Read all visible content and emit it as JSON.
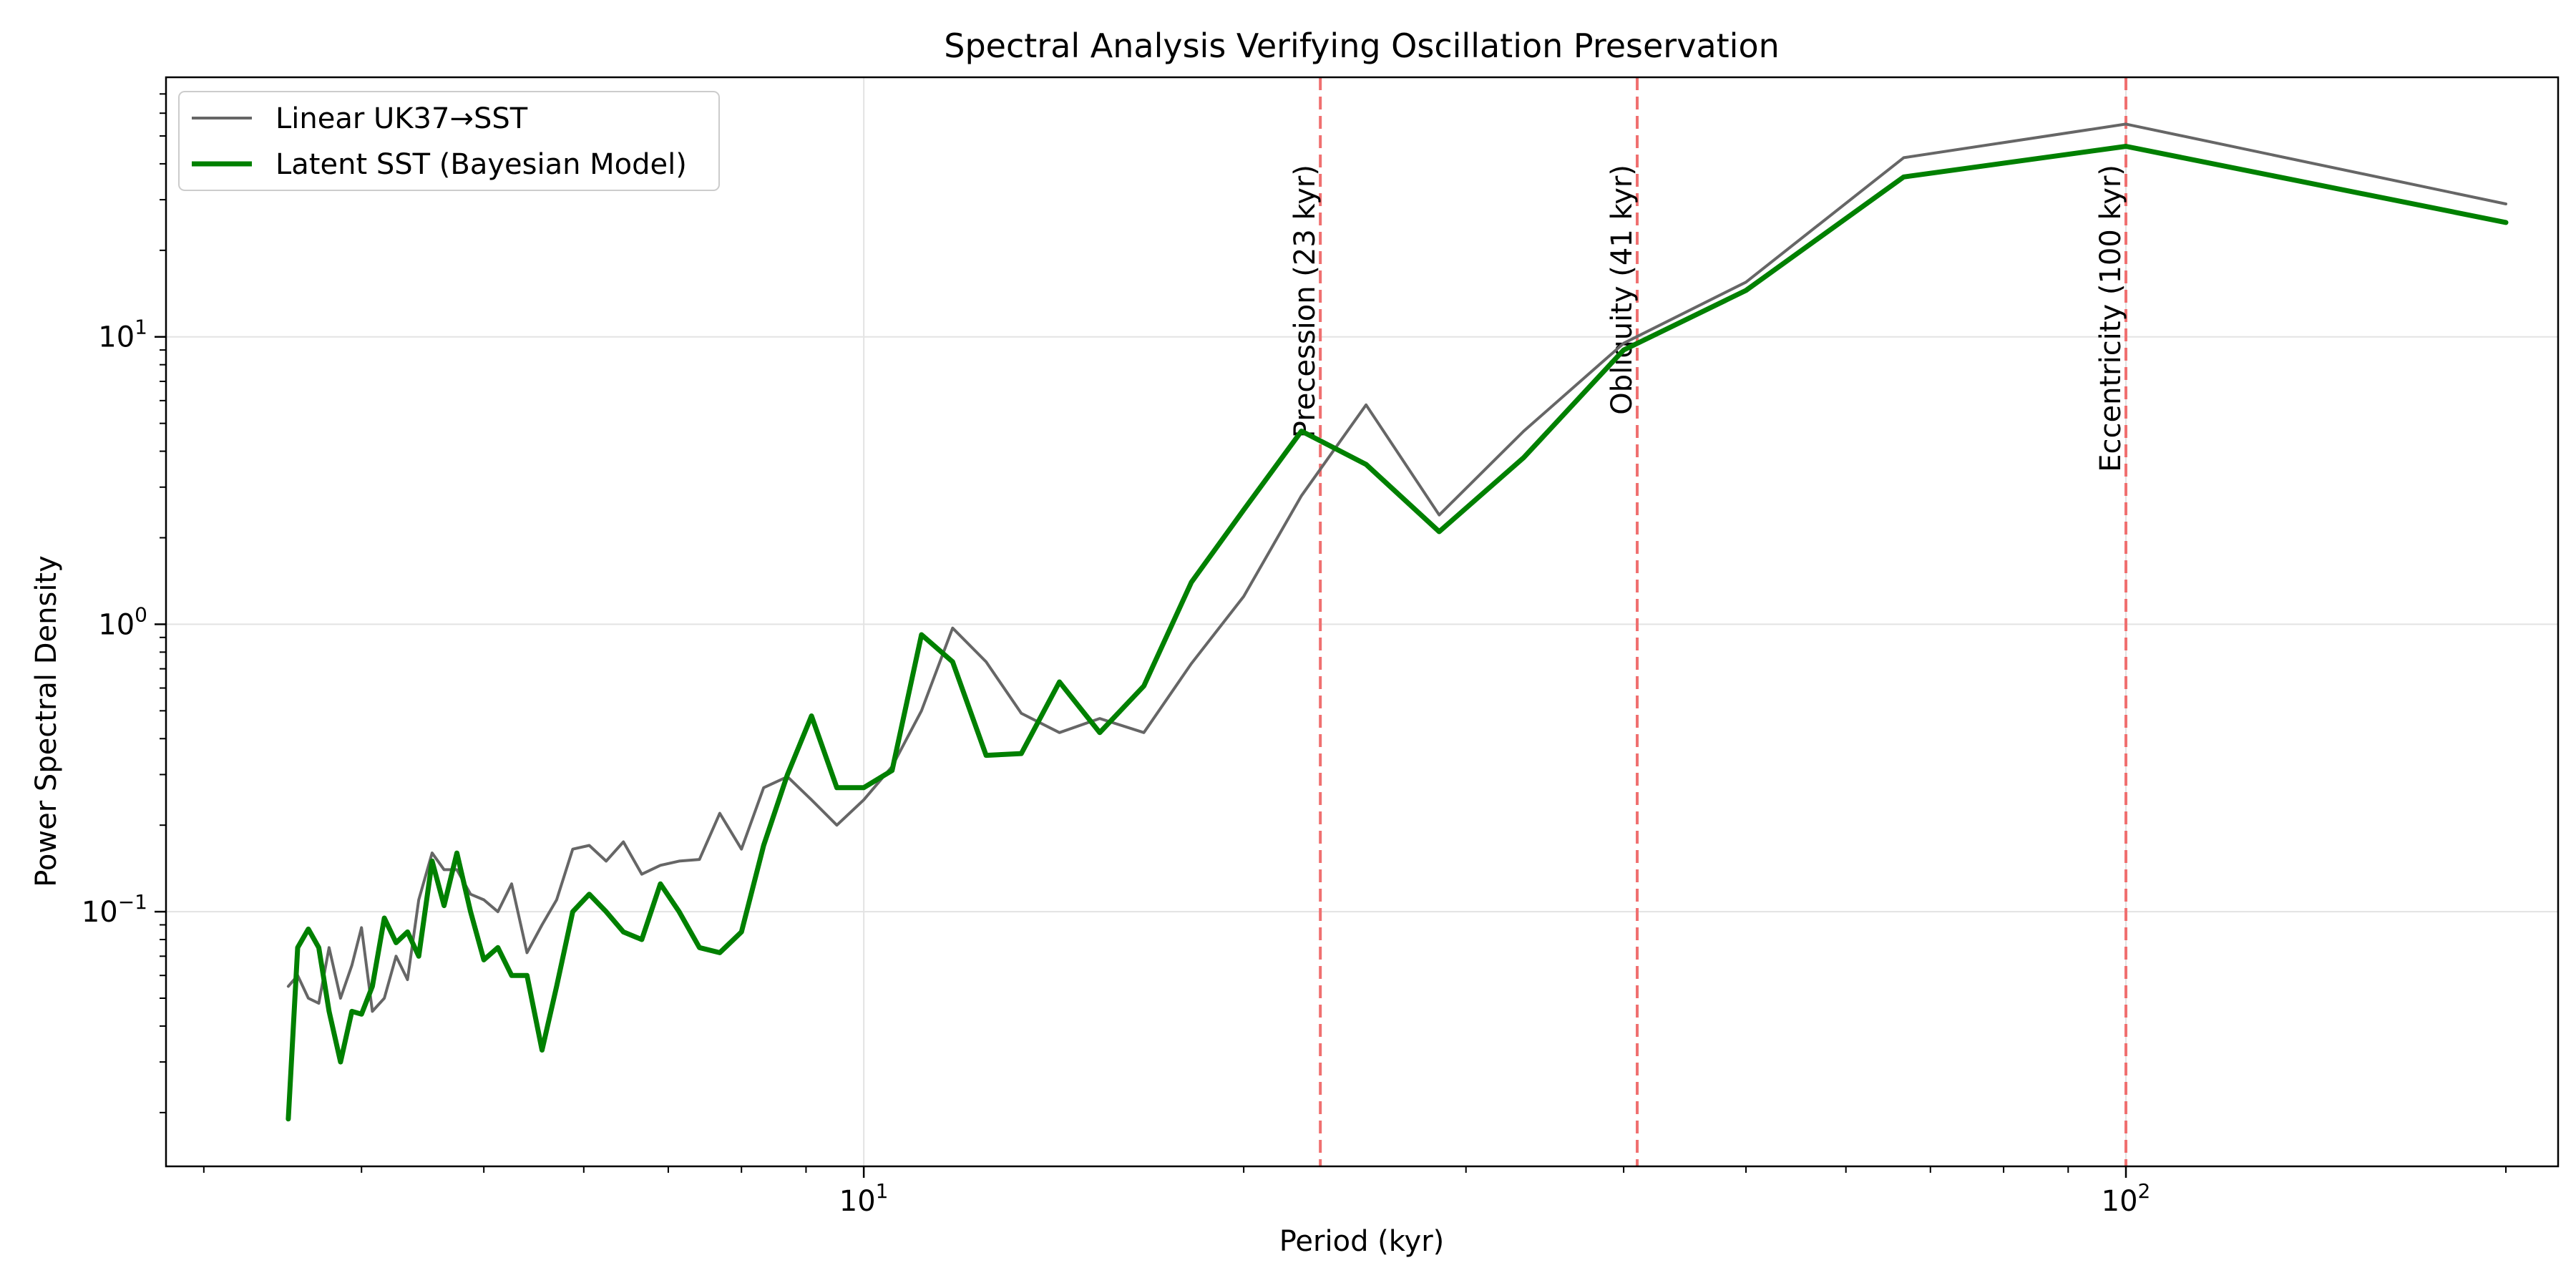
{
  "chart_data": {
    "type": "line",
    "title": "Spectral Analysis Verifying Oscillation Preservation",
    "xlabel": "Period (kyr)",
    "ylabel": "Power Spectral Density",
    "xscale": "log",
    "yscale": "log",
    "xlim": [
      2.8,
      220
    ],
    "ylim": [
      0.013,
      80
    ],
    "grid": true,
    "legend_position": "upper-left",
    "xticks": [
      {
        "value": 10,
        "base": "10",
        "exp": "1"
      },
      {
        "value": 100,
        "base": "10",
        "exp": "2"
      }
    ],
    "yticks": [
      {
        "value": 0.1,
        "base": "10",
        "exp": "−1"
      },
      {
        "value": 1,
        "base": "10",
        "exp": "0"
      },
      {
        "value": 10,
        "base": "10",
        "exp": "1"
      }
    ],
    "reference_lines": [
      {
        "x": 23,
        "label": "Precession (23 kyr)",
        "color": "#f07070"
      },
      {
        "x": 41,
        "label": "Obliquity (41 kyr)",
        "color": "#f07070"
      },
      {
        "x": 100,
        "label": "Eccentricity (100 kyr)",
        "color": "#f07070"
      }
    ],
    "series": [
      {
        "name": "Linear UK37→SST",
        "color": "#666666",
        "width": 2,
        "x": [
          3.5,
          3.56,
          3.63,
          3.7,
          3.77,
          3.85,
          3.93,
          4.0,
          4.08,
          4.17,
          4.26,
          4.35,
          4.44,
          4.55,
          4.65,
          4.76,
          4.88,
          5.0,
          5.13,
          5.26,
          5.41,
          5.56,
          5.71,
          5.88,
          6.06,
          6.25,
          6.45,
          6.67,
          6.9,
          7.14,
          7.41,
          7.69,
          8.0,
          8.33,
          8.7,
          9.09,
          9.52,
          10.0,
          10.53,
          11.11,
          11.76,
          12.5,
          13.33,
          14.29,
          15.38,
          16.67,
          18.18,
          20.0,
          22.22,
          25.0,
          28.57,
          33.33,
          40.0,
          50.0,
          66.67,
          100.0,
          200.0
        ],
        "y": [
          0.055,
          0.06,
          0.05,
          0.048,
          0.075,
          0.05,
          0.065,
          0.088,
          0.045,
          0.05,
          0.07,
          0.058,
          0.11,
          0.16,
          0.14,
          0.14,
          0.115,
          0.11,
          0.1,
          0.125,
          0.072,
          0.09,
          0.11,
          0.165,
          0.17,
          0.15,
          0.175,
          0.135,
          0.145,
          0.15,
          0.152,
          0.22,
          0.165,
          0.27,
          0.295,
          0.245,
          0.2,
          0.245,
          0.32,
          0.5,
          0.97,
          0.74,
          0.49,
          0.42,
          0.47,
          0.42,
          0.73,
          1.25,
          2.8,
          5.8,
          2.4,
          4.7,
          9.5,
          15.5,
          42,
          55,
          29
        ]
      },
      {
        "name": "Latent SST (Bayesian Model)",
        "color": "#008000",
        "width": 3.5,
        "x": [
          3.5,
          3.56,
          3.63,
          3.7,
          3.77,
          3.85,
          3.93,
          4.0,
          4.08,
          4.17,
          4.26,
          4.35,
          4.44,
          4.55,
          4.65,
          4.76,
          4.88,
          5.0,
          5.13,
          5.26,
          5.41,
          5.56,
          5.71,
          5.88,
          6.06,
          6.25,
          6.45,
          6.67,
          6.9,
          7.14,
          7.41,
          7.69,
          8.0,
          8.33,
          8.7,
          9.09,
          9.52,
          10.0,
          10.53,
          11.11,
          11.76,
          12.5,
          13.33,
          14.29,
          15.38,
          16.67,
          18.18,
          20.0,
          22.22,
          25.0,
          28.57,
          33.33,
          40.0,
          50.0,
          66.67,
          100.0,
          200.0
        ],
        "y": [
          0.019,
          0.075,
          0.087,
          0.075,
          0.045,
          0.03,
          0.045,
          0.044,
          0.055,
          0.095,
          0.078,
          0.085,
          0.07,
          0.15,
          0.105,
          0.16,
          0.1,
          0.068,
          0.075,
          0.06,
          0.06,
          0.033,
          0.055,
          0.1,
          0.115,
          0.1,
          0.085,
          0.08,
          0.125,
          0.1,
          0.075,
          0.072,
          0.085,
          0.17,
          0.3,
          0.48,
          0.27,
          0.27,
          0.31,
          0.92,
          0.74,
          0.35,
          0.355,
          0.63,
          0.42,
          0.61,
          1.4,
          2.5,
          4.7,
          3.6,
          2.1,
          3.8,
          9.0,
          14.5,
          36,
          46,
          25
        ]
      }
    ]
  }
}
